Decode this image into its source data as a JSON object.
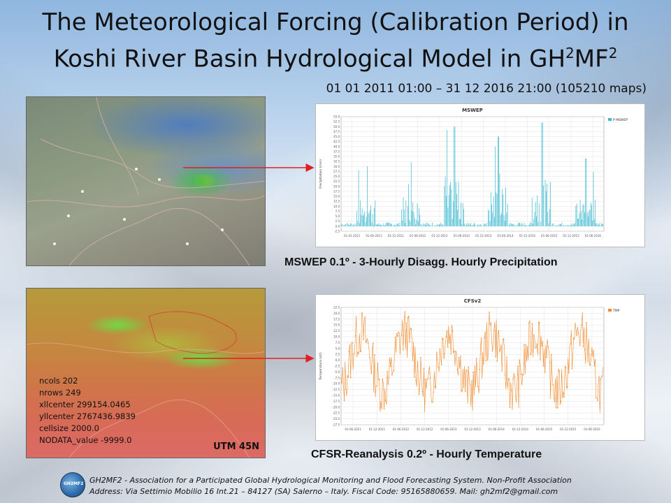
{
  "title": {
    "line1": "The Meteorological Forcing (Calibration Period) in",
    "line2_pre": "Koshi River Basin Hydrological Model in GH",
    "sup1": "2",
    "line2_mid": "MF",
    "sup2": "2"
  },
  "date_range": "01 01 2011 01:00 – 31 12 2016 21:00 (105210 maps)",
  "map_bottom": {
    "params": [
      "ncols 202",
      "nrows 249",
      "xllcenter 299154.0465",
      "yllcenter 2767436.9839",
      "cellsize 2000.0",
      "NODATA_value -9999.0"
    ],
    "utm_label": "UTM 45N"
  },
  "captions": {
    "precip": "MSWEP  0.1º - 3-Hourly Disagg. Hourly Precipitation",
    "temp": "CFSR-Reanalysis 0.2º -  Hourly Temperature"
  },
  "footer": {
    "logo_text": "GH2MF2",
    "line1": "GH2MF2 - Association for a Participated Global Hydrological Monitoring and Flood Forecasting System. Non-Profit Association",
    "line2": "Address: Via Settimio Mobilio  16 Int.21 – 84127 (SA) Salerno – Italy. Fiscal Code: 95165880659.  Mail: gh2mf2@gmail.com"
  },
  "colors": {
    "arrow": "#e02020",
    "precip_series": "#3bb8d0",
    "temp_series": "#f08a2a"
  },
  "chart_data": [
    {
      "type": "bar",
      "title": "MSWEP",
      "ylabel": "Precipitation (mm)",
      "legend": [
        "P MSWEP"
      ],
      "legend_position": "top-right",
      "ylim": [
        -2.5,
        55
      ],
      "y_ticks": [
        "-2.5",
        "0.0",
        "2.5",
        "5.0",
        "7.5",
        "10.0",
        "12.5",
        "15.0",
        "17.5",
        "20.0",
        "22.5",
        "25.0",
        "27.5",
        "30.0",
        "32.5",
        "35.0",
        "37.5",
        "40.0",
        "42.5",
        "45.0",
        "47.5",
        "50.0",
        "52.5",
        "55.0"
      ],
      "x_ticks": [
        "01-01-2011",
        "01-06-2011",
        "01-12-2011",
        "01-06-2012",
        "01-12-2012",
        "01-06-2013",
        "01-12-2013",
        "01-06-2014",
        "01-12-2014",
        "01-06-2015",
        "01-12-2015",
        "01-06-2016"
      ],
      "seasonal_peaks": [
        {
          "period": "2011 monsoon",
          "max": 30
        },
        {
          "period": "2012 monsoon",
          "max": 32
        },
        {
          "period": "2013 monsoon",
          "max": 50
        },
        {
          "period": "2014 monsoon",
          "max": 45
        },
        {
          "period": "2015 monsoon",
          "max": 52
        },
        {
          "period": "2016 monsoon",
          "max": 34
        }
      ],
      "grid": true
    },
    {
      "type": "line",
      "title": "CFSv2",
      "ylabel": "Temperature (oC)",
      "legend": [
        "TMP"
      ],
      "legend_position": "top-right",
      "ylim": [
        -27.5,
        22.5
      ],
      "y_ticks": [
        "22.5",
        "20.0",
        "17.5",
        "15.0",
        "12.5",
        "10.0",
        "7.5",
        "5.0",
        "2.5",
        "0.0",
        "-2.5",
        "-5.0",
        "-7.5",
        "-10.0",
        "-12.5",
        "-15.0",
        "-17.5",
        "-20.0",
        "-22.5",
        "-25.0",
        "-27.5"
      ],
      "x_ticks": [
        "01-06-2011",
        "01-12-2011",
        "01-06-2012",
        "01-12-2012",
        "01-06-2013",
        "01-12-2013",
        "01-06-2014",
        "01-12-2014",
        "01-06-2015",
        "01-12-2015",
        "01-06-2016"
      ],
      "seasonal_range": {
        "summer_max": 20,
        "winter_min": -25
      },
      "grid": true
    }
  ]
}
